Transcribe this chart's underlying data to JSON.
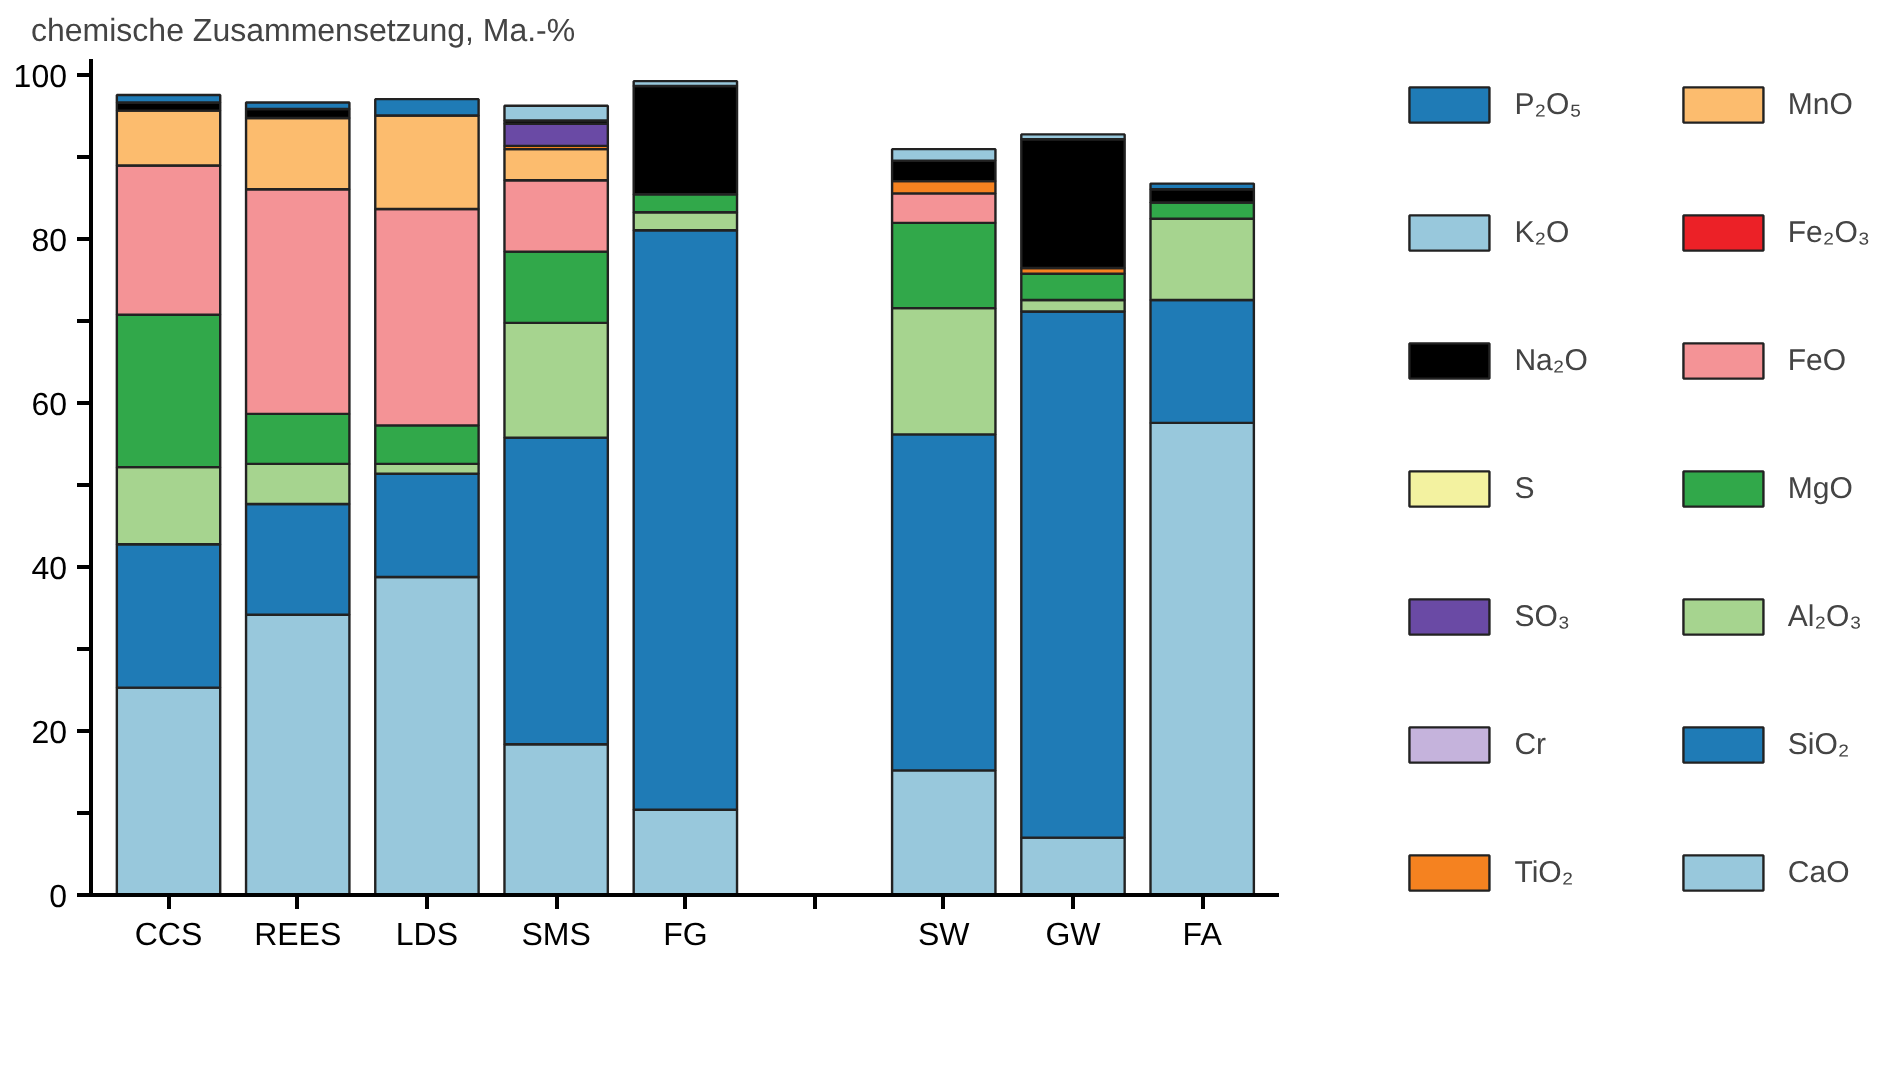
{
  "chart_data": {
    "type": "bar",
    "stacked": true,
    "ylabel": "chemische Zusammensetzung, Ma.-%",
    "categories": [
      "CCS",
      "REES",
      "LDS",
      "SMS",
      "FG",
      null,
      "SW",
      "GW",
      "FA"
    ],
    "ylim": [
      0,
      102
    ],
    "yticks": [
      0,
      {
        "value": 10,
        "label": null
      },
      20,
      {
        "value": 30,
        "label": null
      },
      40,
      {
        "value": 50,
        "label": null
      },
      60,
      {
        "value": 70,
        "label": null
      },
      80,
      {
        "value": 90,
        "label": null
      },
      100
    ],
    "grid": false,
    "legend": "right",
    "series": [
      {
        "name": "CaO",
        "color": "#98c8dc",
        "values": [
          25.3,
          34.2,
          38.8,
          18.4,
          10.4,
          null,
          15.2,
          7.0,
          57.6
        ]
      },
      {
        "name": "SiO₂",
        "color": "#1f7bb6",
        "values": [
          17.5,
          13.5,
          12.6,
          37.4,
          70.7,
          null,
          41.0,
          64.2,
          15.0
        ]
      },
      {
        "name": "Al₂O₃",
        "color": "#a6d48f",
        "values": [
          9.4,
          4.9,
          1.2,
          14.0,
          2.2,
          null,
          15.4,
          1.4,
          9.9
        ]
      },
      {
        "name": "MgO",
        "color": "#31a84a",
        "values": [
          18.6,
          6.1,
          4.7,
          8.7,
          2.2,
          null,
          10.4,
          3.2,
          2.0
        ]
      },
      {
        "name": "FeO",
        "color": "#f49396",
        "values": [
          18.2,
          27.4,
          26.4,
          8.7,
          null,
          null,
          3.6,
          null,
          null
        ]
      },
      {
        "name": "Fe₂O₃",
        "color": "#ec2127",
        "values": [
          null,
          null,
          null,
          null,
          null,
          null,
          null,
          null,
          null
        ]
      },
      {
        "name": "MnO",
        "color": "#fcbc6e",
        "values": [
          6.7,
          8.7,
          11.4,
          3.8,
          null,
          null,
          null,
          null,
          null
        ]
      },
      {
        "name": "TiO₂",
        "color": "#f58220",
        "values": [
          null,
          null,
          null,
          0.4,
          null,
          null,
          1.5,
          0.7,
          null
        ]
      },
      {
        "name": "Cr",
        "color": "#c5b3dc",
        "values": [
          null,
          null,
          null,
          null,
          null,
          null,
          null,
          null,
          null
        ]
      },
      {
        "name": "SO₃",
        "color": "#6a4aa5",
        "values": [
          null,
          null,
          null,
          2.7,
          null,
          null,
          null,
          null,
          null
        ]
      },
      {
        "name": "S",
        "color": "#f3f2a0",
        "values": [
          null,
          null,
          null,
          null,
          null,
          null,
          null,
          null,
          null
        ]
      },
      {
        "name": "Na₂O",
        "color": "#000000",
        "values": [
          1.0,
          1.1,
          null,
          0.4,
          13.2,
          null,
          2.5,
          15.7,
          1.6
        ]
      },
      {
        "name": "K₂O",
        "color": "#98c8dc",
        "values": [
          null,
          null,
          null,
          1.8,
          0.6,
          null,
          1.4,
          0.6,
          null
        ]
      },
      {
        "name": "P₂O₅",
        "color": "#1f7bb6",
        "values": [
          0.9,
          0.8,
          2.0,
          null,
          null,
          null,
          null,
          null,
          0.7
        ]
      }
    ]
  }
}
